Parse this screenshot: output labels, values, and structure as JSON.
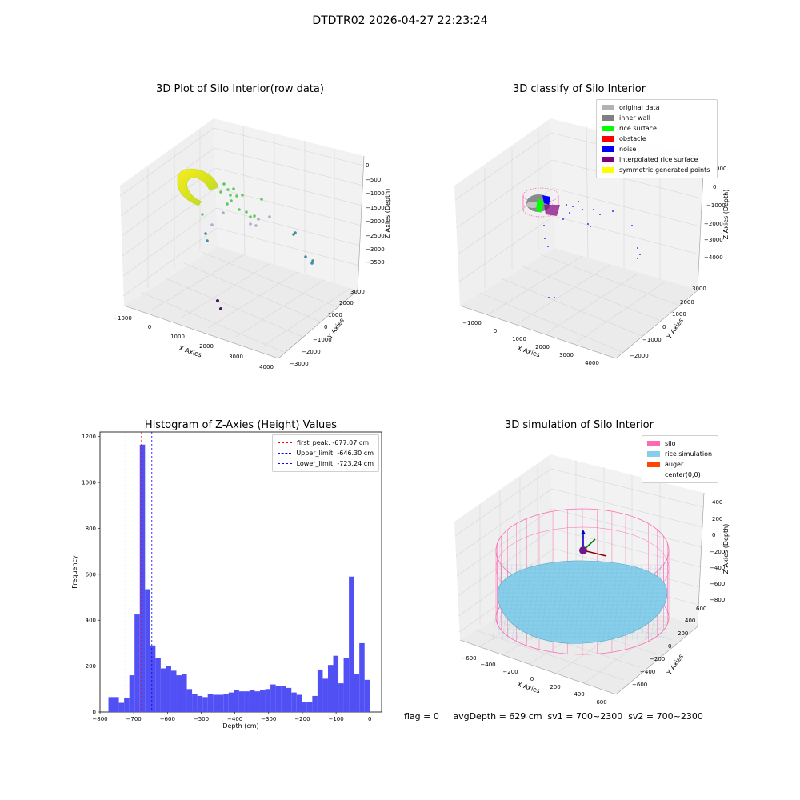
{
  "suptitle": "DTDTR02 2026-04-27 22:23:24",
  "panel1": {
    "title": "3D Plot of Silo Interior(row data)",
    "xlabel": "X Axies",
    "ylabel": "Y Axies",
    "zlabel": "Z Axies (Depth)",
    "xticks": [
      "−1000",
      "0",
      "1000",
      "2000",
      "3000",
      "4000"
    ],
    "yticks": [
      "−3000",
      "−2000",
      "−1000",
      "0",
      "1000",
      "2000",
      "3000"
    ],
    "zticks": [
      "0",
      "−500",
      "−1000",
      "−1500",
      "−2000",
      "−2500",
      "−3000",
      "−3500"
    ]
  },
  "panel2": {
    "title": "3D classify of Silo Interior",
    "xlabel": "X Axies",
    "ylabel": "Y Axies",
    "zlabel": "Z Axies (Depth)",
    "xticks": [
      "−1000",
      "0",
      "1000",
      "2000",
      "3000",
      "4000"
    ],
    "yticks": [
      "−2000",
      "−1000",
      "0",
      "1000",
      "2000",
      "3000"
    ],
    "zticks": [
      "0",
      "−1000",
      "−2000",
      "−3000",
      "−4000"
    ],
    "ztick_partial": "000",
    "legend": [
      {
        "label": "original data",
        "color": "#b3b3b3"
      },
      {
        "label": "inner wall",
        "color": "#808080"
      },
      {
        "label": "rice surface",
        "color": "#00ff00"
      },
      {
        "label": "obstacle",
        "color": "#ff0000"
      },
      {
        "label": "noise",
        "color": "#0000ff"
      },
      {
        "label": "interpolated rice surface",
        "color": "#800080"
      },
      {
        "label": "symmetric generated points",
        "color": "#ffff00"
      }
    ]
  },
  "panel3": {
    "title": "Histogram of Z-Axies (Height) Values",
    "xlabel": "Depth (cm)",
    "ylabel": "Frequency",
    "legend": [
      {
        "label": "first_peak: -677.07 cm",
        "color": "#ff0000"
      },
      {
        "label": "Upper_limit: -646.30 cm",
        "color": "#0000ff"
      },
      {
        "label": "Lower_limit: -723.24 cm",
        "color": "#0000ff"
      }
    ]
  },
  "panel4": {
    "title": "3D simulation of Silo Interior",
    "xlabel": "X Axies",
    "ylabel": "Y Axies",
    "zlabel": "Z Axies (Depth)",
    "xticks": [
      "−600",
      "−400",
      "−200",
      "0",
      "200",
      "400",
      "600"
    ],
    "yticks": [
      "−600",
      "−400",
      "−200",
      "0",
      "200",
      "400",
      "600"
    ],
    "zticks": [
      "400",
      "200",
      "0",
      "−200",
      "−400",
      "−600",
      "−800"
    ],
    "legend": [
      {
        "label": "silo",
        "color": "#ff69b4"
      },
      {
        "label": "rice simulation",
        "color": "#87ceeb"
      },
      {
        "label": "auger",
        "color": "#ff4500"
      },
      {
        "label": "center(0,0)",
        "color": ""
      }
    ]
  },
  "status": "flag = 0     avgDepth = 629 cm  sv1 = 700~2300  sv2 = 700~2300",
  "chart_data": {
    "type": "bar",
    "title": "Histogram of Z-Axies (Height) Values",
    "xlabel": "Depth (cm)",
    "ylabel": "Frequency",
    "xlim": [
      -800,
      35
    ],
    "ylim": [
      0,
      1220
    ],
    "xticks": [
      -800,
      -700,
      -600,
      -500,
      -400,
      -300,
      -200,
      -100,
      0
    ],
    "yticks": [
      0,
      200,
      400,
      600,
      800,
      1000,
      1200
    ],
    "bin_start": -775,
    "bin_width": 15.5,
    "values": [
      65,
      65,
      40,
      60,
      160,
      425,
      1165,
      535,
      290,
      235,
      190,
      200,
      180,
      160,
      165,
      100,
      80,
      70,
      65,
      80,
      75,
      75,
      80,
      85,
      95,
      90,
      90,
      95,
      90,
      95,
      100,
      120,
      115,
      115,
      105,
      85,
      75,
      45,
      45,
      70,
      185,
      145,
      205,
      245,
      125,
      235,
      590,
      165,
      300,
      140
    ],
    "lines": [
      {
        "name": "first_peak",
        "x": -677.07,
        "color": "#ff0000"
      },
      {
        "name": "Upper_limit",
        "x": -646.3,
        "color": "#0000ff"
      },
      {
        "name": "Lower_limit",
        "x": -723.24,
        "color": "#0000ff"
      }
    ]
  }
}
